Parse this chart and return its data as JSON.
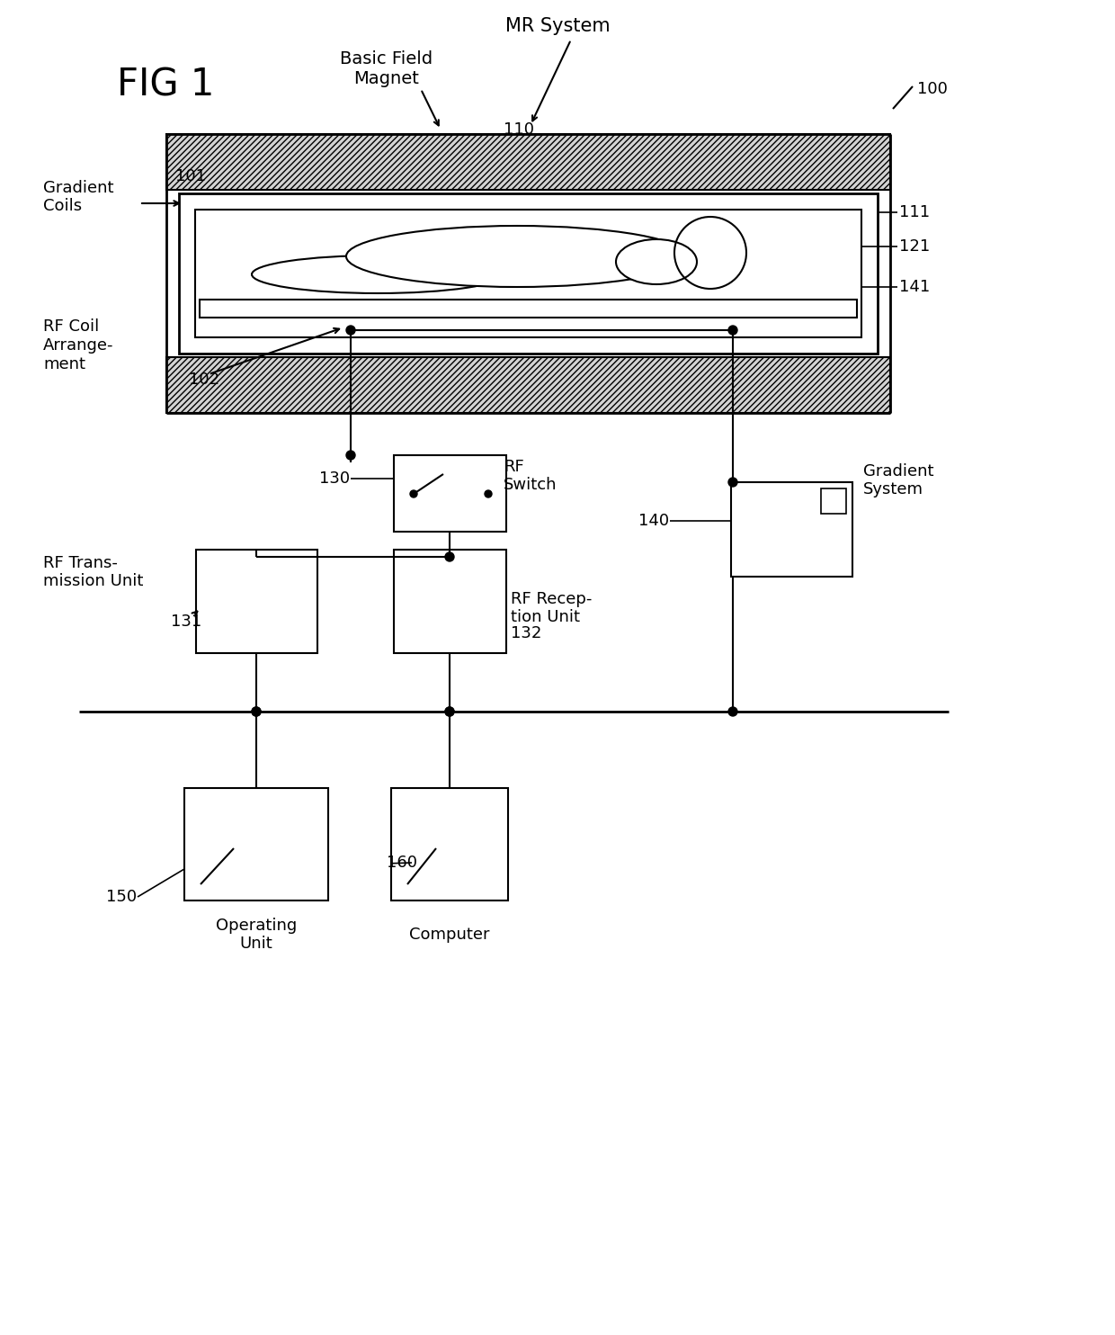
{
  "bg_color": "#ffffff",
  "line_color": "#000000",
  "fig_label": "FIG 1",
  "title_label": "MR System",
  "ref_100": "100",
  "ref_110": "110",
  "ref_111": "111",
  "ref_121": "121",
  "ref_141": "141",
  "ref_101": "101",
  "ref_102": "102",
  "ref_130": "130",
  "ref_131": "131",
  "ref_132": "132",
  "ref_140": "140",
  "ref_150": "150",
  "ref_160": "160",
  "label_basic_field_magnet": "Basic Field\nMagnet",
  "label_gradient_coils": "Gradient\nCoils",
  "label_rf_coil": "RF Coil\nArrange-\nment",
  "label_rf_switch": "RF\nSwitch",
  "label_gradient_system": "Gradient\nSystem",
  "label_rf_transmission": "RF Trans-\nmission Unit",
  "label_rf_reception": "RF Recep-\ntion Unit",
  "label_operating_unit": "Operating\nUnit",
  "label_computer": "Computer"
}
